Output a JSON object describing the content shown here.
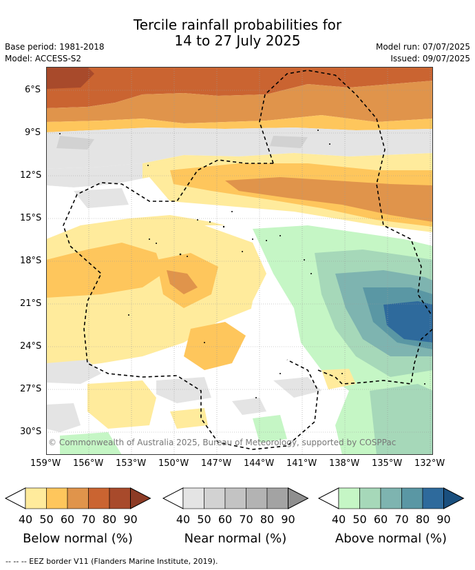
{
  "header": {
    "title_line1": "Tercile rainfall probabilities for",
    "title_line2": "14 to 27 July 2025",
    "base_period": "Base period: 1981-2018",
    "model": "Model: ACCESS-S2",
    "model_run": "Model run: 07/07/2025",
    "issued": "Issued: 09/07/2025"
  },
  "map": {
    "lat_labels": [
      "6°S",
      "9°S",
      "12°S",
      "15°S",
      "18°S",
      "21°S",
      "24°S",
      "27°S",
      "30°S"
    ],
    "lon_labels": [
      "159°W",
      "156°W",
      "153°W",
      "150°W",
      "147°W",
      "144°W",
      "141°W",
      "138°W",
      "135°W",
      "132°W"
    ],
    "copyright": "© Commonwealth of Australia 2025, Bureau of Meteorology, supported by COSPPac",
    "border_style": "dashed"
  },
  "legend": {
    "levels": [
      "40",
      "50",
      "60",
      "70",
      "80",
      "90"
    ],
    "below": {
      "title": "Below normal (%)",
      "colors": [
        "#ffeb9c",
        "#fec65c",
        "#e0944b",
        "#ca6431",
        "#a84a2b",
        "#8d3b25"
      ]
    },
    "near": {
      "title": "Near normal (%)",
      "colors": [
        "#e4e4e4",
        "#d2d2d2",
        "#c3c3c3",
        "#b3b3b3",
        "#a3a3a3",
        "#8f8f8f"
      ]
    },
    "above": {
      "title": "Above normal (%)",
      "colors": [
        "#c5f6c5",
        "#a6d8b9",
        "#7eb4b0",
        "#5a97a4",
        "#2e6a9c",
        "#1a4f7e"
      ]
    }
  },
  "footer": {
    "text": "--  --  -- EEZ border V11 (Flanders Marine Institute, 2019)."
  }
}
